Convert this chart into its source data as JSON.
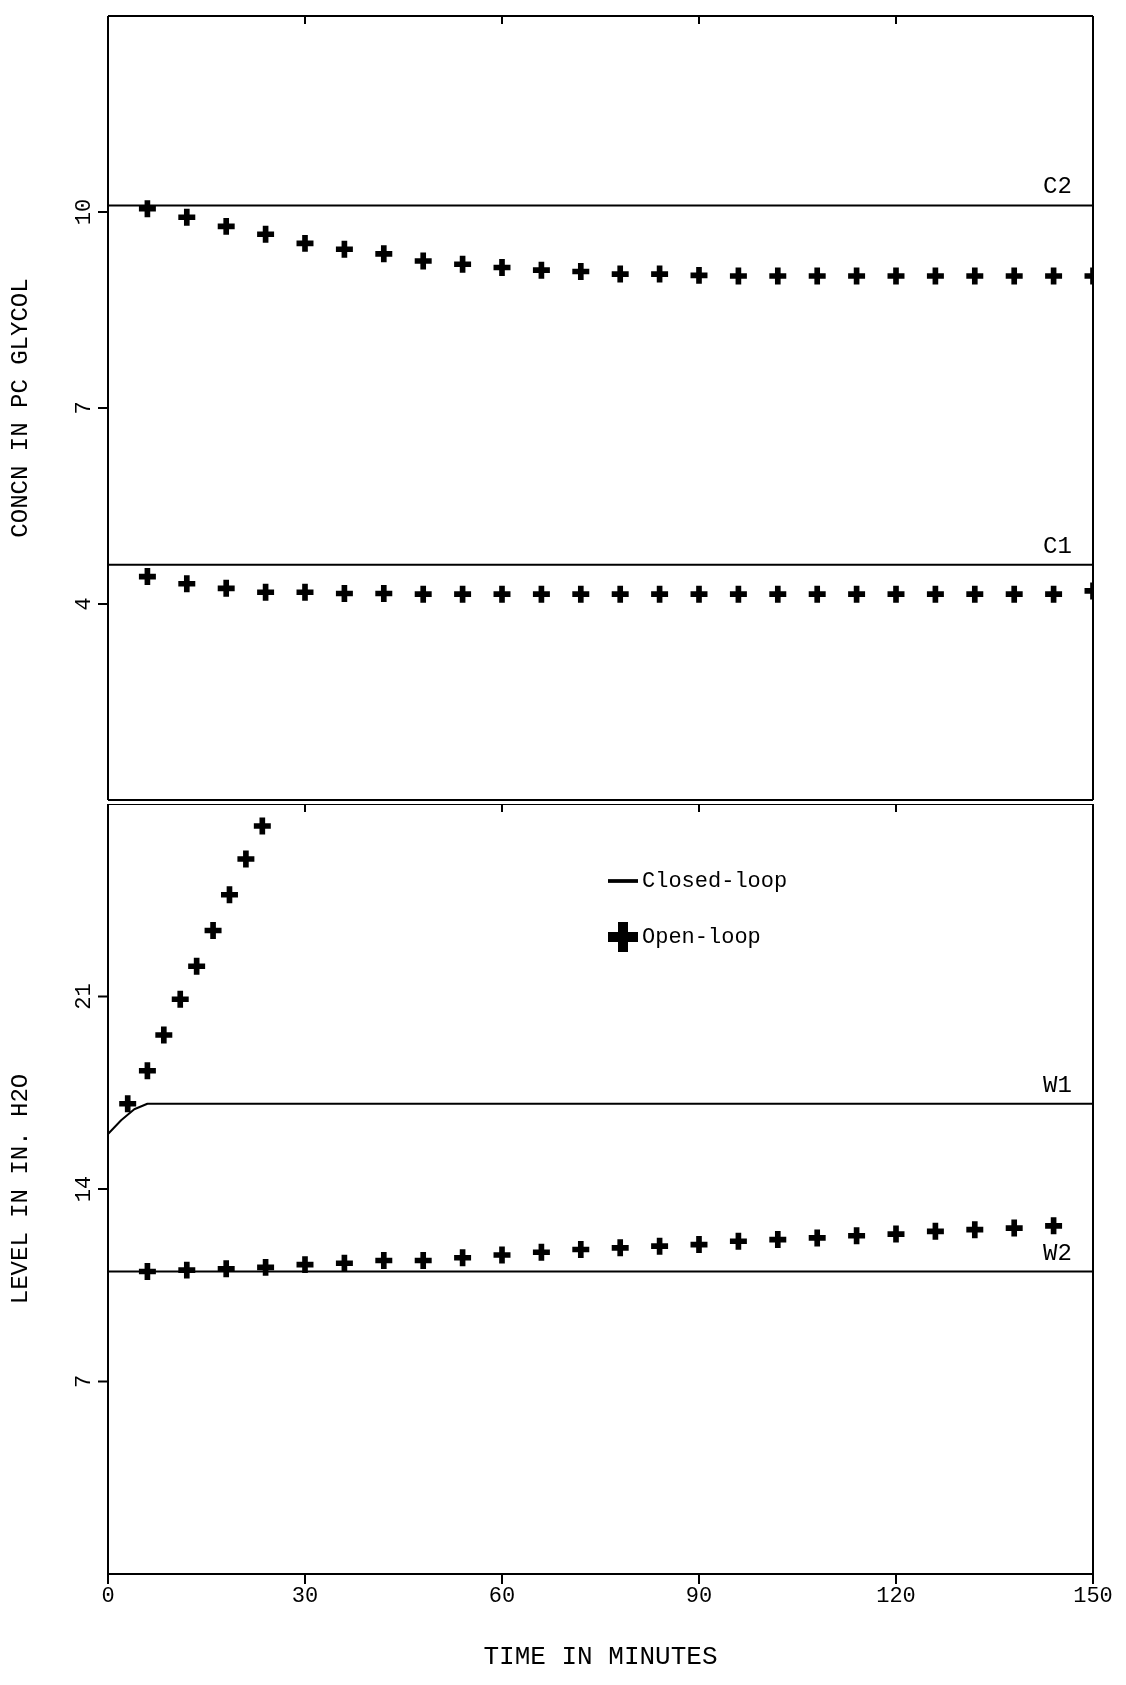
{
  "chart_data": [
    {
      "type": "line",
      "ylabel": "CONCN IN PC GLYCOL",
      "xlim": [
        0,
        150
      ],
      "xticks": [
        0,
        30,
        60,
        90,
        120,
        150
      ],
      "ylim": [
        1,
        13
      ],
      "yticks": [
        4,
        7,
        10
      ],
      "tick_labels": "y",
      "legend": false,
      "series": [
        {
          "type": "line",
          "color": "#000000",
          "marker": "none",
          "x": [
            0,
            150
          ],
          "values": [
            10.1,
            10.1
          ]
        },
        {
          "type": "scatter",
          "color": "#000000",
          "marker": "cross",
          "x": [
            6,
            12,
            18,
            24,
            30,
            36,
            42,
            48,
            54,
            60,
            66,
            72,
            78,
            84,
            90,
            96,
            102,
            108,
            114,
            120,
            126,
            132,
            138,
            144,
            150
          ],
          "values": [
            10.05,
            9.92,
            9.78,
            9.66,
            9.52,
            9.43,
            9.36,
            9.25,
            9.2,
            9.15,
            9.11,
            9.09,
            9.05,
            9.05,
            9.03,
            9.02,
            9.02,
            9.02,
            9.02,
            9.02,
            9.02,
            9.02,
            9.02,
            9.02,
            9.02
          ]
        },
        {
          "type": "line",
          "color": "#000000",
          "marker": "none",
          "x": [
            0,
            150
          ],
          "values": [
            4.6,
            4.6
          ]
        },
        {
          "type": "scatter",
          "color": "#000000",
          "marker": "cross",
          "x": [
            6,
            12,
            18,
            24,
            30,
            36,
            42,
            48,
            54,
            60,
            66,
            72,
            78,
            84,
            90,
            96,
            102,
            108,
            114,
            120,
            126,
            132,
            138,
            144,
            150
          ],
          "values": [
            4.42,
            4.31,
            4.24,
            4.18,
            4.18,
            4.16,
            4.16,
            4.15,
            4.15,
            4.15,
            4.15,
            4.15,
            4.15,
            4.15,
            4.15,
            4.15,
            4.15,
            4.15,
            4.15,
            4.15,
            4.15,
            4.15,
            4.15,
            4.15,
            4.2
          ]
        }
      ],
      "annotations": [
        "C2",
        "C1"
      ]
    },
    {
      "type": "line",
      "xlabel": "TIME IN MINUTES",
      "ylabel": "LEVEL IN IN. H2O",
      "xlim": [
        0,
        150
      ],
      "xticks": [
        0,
        30,
        60,
        90,
        120,
        150
      ],
      "ylim": [
        0,
        28
      ],
      "yticks": [
        7,
        14,
        21
      ],
      "legend": "top right",
      "series": [
        {
          "type": "line",
          "name": "Closed-loop",
          "color": "#000000",
          "marker": "none",
          "x": [
            0,
            2,
            4,
            6,
            150
          ],
          "values": [
            16,
            16.5,
            16.9,
            17.1,
            17.1
          ]
        },
        {
          "type": "scatter",
          "name": "Open-loop",
          "color": "#000000",
          "marker": "cross",
          "x": [
            3,
            6,
            8.5,
            11,
            13.5,
            16,
            18.5,
            21,
            23.5
          ],
          "values": [
            17.1,
            18.3,
            19.6,
            20.9,
            22.1,
            23.4,
            24.7,
            26,
            27.2
          ]
        },
        {
          "type": "line",
          "color": "#000000",
          "marker": "none",
          "x": [
            0,
            150
          ],
          "values": [
            11,
            11
          ]
        },
        {
          "type": "scatter",
          "color": "#000000",
          "marker": "cross",
          "x": [
            6,
            12,
            18,
            24,
            30,
            36,
            42,
            48,
            54,
            60,
            66,
            72,
            78,
            84,
            90,
            96,
            102,
            108,
            114,
            120,
            126,
            132,
            138,
            144
          ],
          "values": [
            11,
            11.05,
            11.1,
            11.15,
            11.25,
            11.3,
            11.4,
            11.4,
            11.5,
            11.6,
            11.7,
            11.8,
            11.86,
            11.92,
            11.98,
            12.1,
            12.16,
            12.22,
            12.3,
            12.36,
            12.46,
            12.52,
            12.58,
            12.66
          ]
        }
      ],
      "annotations": [
        "W1",
        "W2"
      ]
    }
  ]
}
